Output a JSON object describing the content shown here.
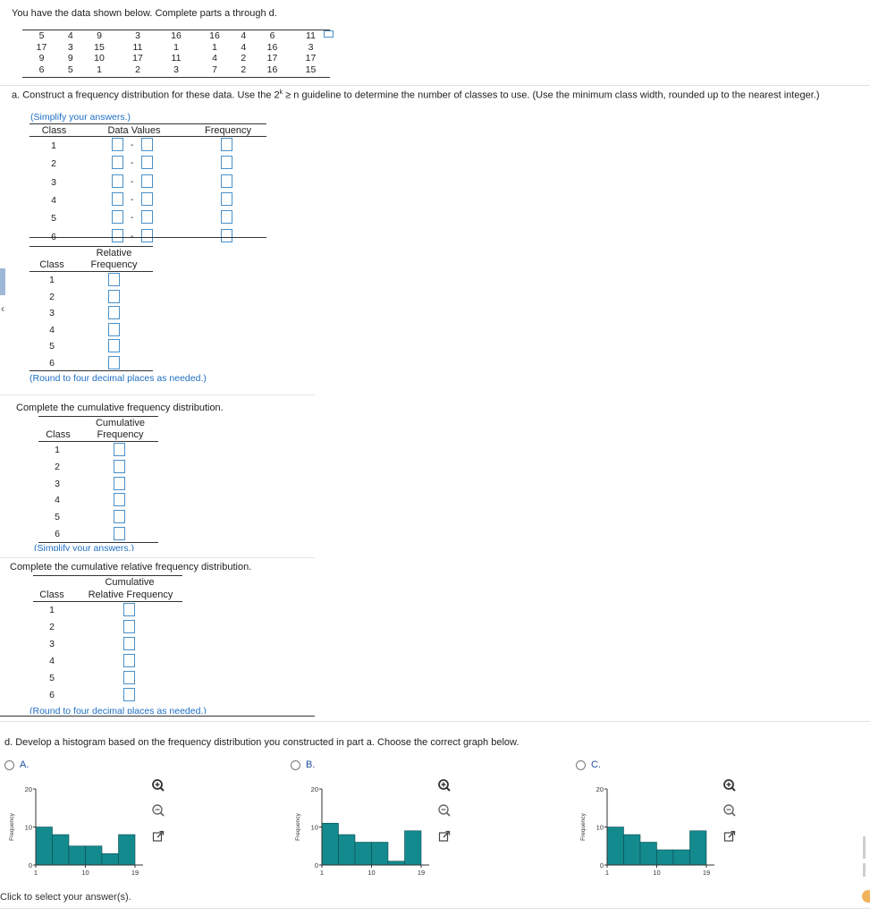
{
  "instructions": "You have the data shown below. Complete parts a through d.",
  "data_rows": [
    [
      "5",
      "4",
      "9",
      "3",
      "16",
      "16",
      "4",
      "6",
      "11"
    ],
    [
      "17",
      "3",
      "15",
      "11",
      "1",
      "1",
      "4",
      "16",
      "3"
    ],
    [
      "9",
      "9",
      "10",
      "17",
      "11",
      "4",
      "2",
      "17",
      "17"
    ],
    [
      "6",
      "5",
      "1",
      "2",
      "3",
      "7",
      "2",
      "16",
      "15"
    ]
  ],
  "part_a": {
    "prompt_before": "a. Construct a frequency distribution for these data. Use the 2",
    "prompt_sup": "k",
    "prompt_after": " ≥ n guideline to determine the number of classes to use. (Use the minimum class width, rounded up to the nearest integer.)",
    "hint": "(Simplify your answers.)",
    "headers": {
      "class": "Class",
      "data_values": "Data Values",
      "frequency": "Frequency"
    },
    "classes": [
      "1",
      "2",
      "3",
      "4",
      "5",
      "6"
    ],
    "dash": "-"
  },
  "relative": {
    "header_class": "Class",
    "header_line1": "Relative",
    "header_line2": "Frequency",
    "hint": "(Round to four decimal places as needed.)"
  },
  "cumulative": {
    "prompt": "Complete the cumulative frequency distribution.",
    "header_class": "Class",
    "header_line1": "Cumulative",
    "header_line2": "Frequency",
    "hint": "(Simplify your answers.)"
  },
  "cumulative_relative": {
    "prompt": "Complete the cumulative relative frequency distribution.",
    "header_class": "Class",
    "header_line1": "Cumulative",
    "header_line2": "Relative Frequency",
    "hint": "(Round to four decimal places as needed.)"
  },
  "part_d": {
    "prompt": "d. Develop a histogram based on the frequency distribution you constructed in part a. Choose the correct graph below.",
    "footer": "Click to select your answer(s)."
  },
  "colors": {
    "bar": "#138a8e",
    "link": "#1f6fc4",
    "input_border": "#4a90c8"
  },
  "chart_data": [
    {
      "type": "bar",
      "option": "A.",
      "ylabel": "Frequency",
      "x_ticks": [
        "1",
        "10",
        "19"
      ],
      "y_ticks": [
        "0",
        "10",
        "20"
      ],
      "ylim": [
        0,
        20
      ],
      "values": [
        10,
        8,
        5,
        5,
        3,
        8
      ]
    },
    {
      "type": "bar",
      "option": "B.",
      "ylabel": "Frequency",
      "x_ticks": [
        "1",
        "10",
        "19"
      ],
      "y_ticks": [
        "0",
        "10",
        "20"
      ],
      "ylim": [
        0,
        20
      ],
      "values": [
        11,
        8,
        6,
        6,
        1,
        9
      ]
    },
    {
      "type": "bar",
      "option": "C.",
      "ylabel": "Frequency",
      "x_ticks": [
        "1",
        "10",
        "19"
      ],
      "y_ticks": [
        "0",
        "10",
        "20"
      ],
      "ylim": [
        0,
        20
      ],
      "values": [
        10,
        8,
        6,
        4,
        4,
        9
      ]
    }
  ]
}
